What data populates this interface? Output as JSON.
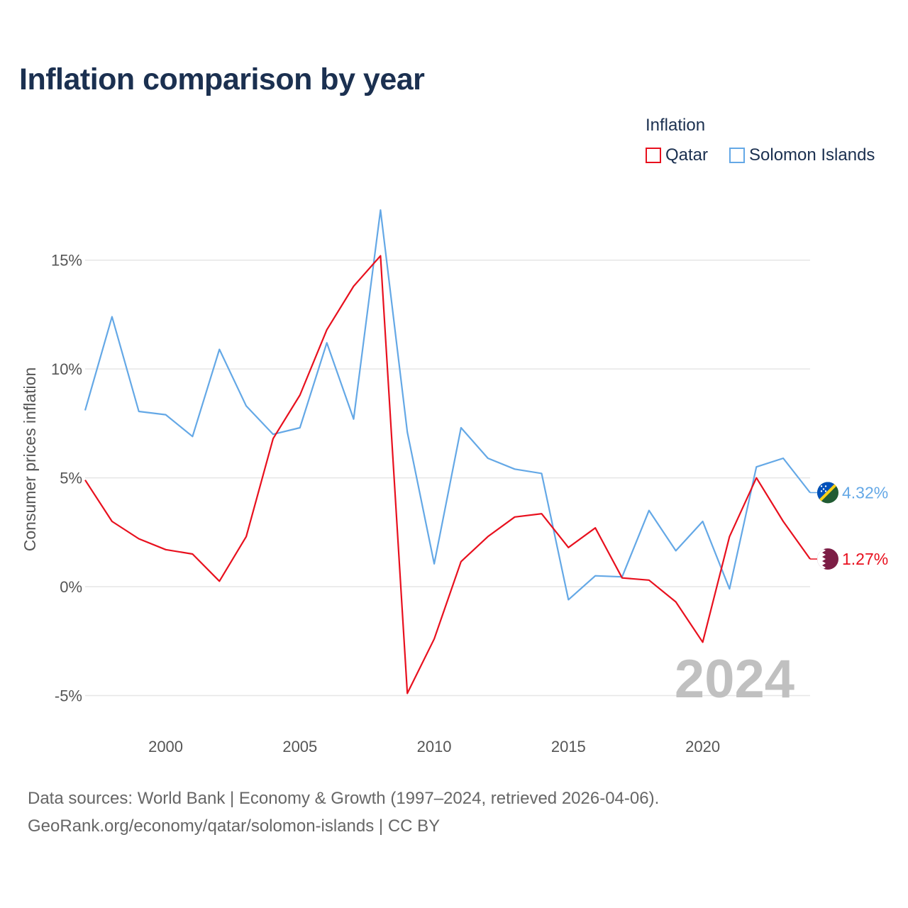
{
  "page": {
    "title": "Inflation comparison by year",
    "source_line1": "Data sources: World Bank | Economy & Growth (1997–2024, retrieved 2026-04-06).",
    "source_line2": "GeoRank.org/economy/qatar/solomon-islands | CC BY"
  },
  "legend": {
    "title": "Inflation",
    "items": [
      {
        "label": "Qatar",
        "color": "#e8101e"
      },
      {
        "label": "Solomon Islands",
        "color": "#64a8e6"
      }
    ]
  },
  "chart_data": {
    "type": "line",
    "title": "Inflation comparison by year",
    "ylabel": "Consumer prices inflation",
    "xlabel": "",
    "year_label": "2024",
    "xlim": [
      1997,
      2024
    ],
    "ylim": [
      -5.8,
      17.5
    ],
    "yticks": [
      -5,
      0,
      5,
      10,
      15
    ],
    "ytick_labels": [
      "-5%",
      "0%",
      "5%",
      "10%",
      "15%"
    ],
    "xticks": [
      2000,
      2005,
      2010,
      2015,
      2020
    ],
    "xtick_labels": [
      "2000",
      "2005",
      "2010",
      "2015",
      "2020"
    ],
    "x": [
      1997,
      1998,
      1999,
      2000,
      2001,
      2002,
      2003,
      2004,
      2005,
      2006,
      2007,
      2008,
      2009,
      2010,
      2011,
      2012,
      2013,
      2014,
      2015,
      2016,
      2017,
      2018,
      2019,
      2020,
      2021,
      2022,
      2023,
      2024
    ],
    "series": [
      {
        "name": "Qatar",
        "color": "#e8101e",
        "end_label": "1.27%",
        "flag": "qatar-flag",
        "values": [
          4.9,
          3.0,
          2.2,
          1.7,
          1.5,
          0.25,
          2.3,
          6.8,
          8.8,
          11.8,
          13.8,
          15.2,
          -4.9,
          -2.4,
          1.15,
          2.3,
          3.2,
          3.35,
          1.8,
          2.7,
          0.4,
          0.3,
          -0.7,
          -2.55,
          2.3,
          5.0,
          3.0,
          1.27
        ]
      },
      {
        "name": "Solomon Islands",
        "color": "#64a8e6",
        "end_label": "4.32%",
        "flag": "solomon-islands-flag",
        "values": [
          8.1,
          12.4,
          8.05,
          7.9,
          6.9,
          10.9,
          8.3,
          7.0,
          7.3,
          11.2,
          7.7,
          17.3,
          7.1,
          1.05,
          7.3,
          5.9,
          5.4,
          5.2,
          -0.6,
          0.5,
          0.45,
          3.5,
          1.65,
          3.0,
          -0.1,
          5.5,
          5.9,
          4.32
        ]
      }
    ]
  }
}
